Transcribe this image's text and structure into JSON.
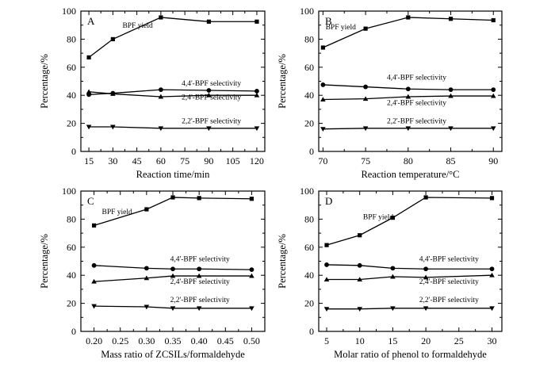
{
  "chart_data": [
    {
      "type": "line",
      "panel_label": "A",
      "xlabel": "Reaction time/min",
      "ylabel": "Percentage/%",
      "xlim": [
        10,
        125
      ],
      "ylim": [
        0,
        100
      ],
      "xticks": [
        15,
        30,
        45,
        60,
        75,
        90,
        105,
        120
      ],
      "xtick_labels": [
        "15",
        "30",
        "45",
        "60",
        "75",
        "90",
        "105",
        "120"
      ],
      "yticks": [
        0,
        20,
        40,
        60,
        80,
        100
      ],
      "ytick_labels": [
        "0",
        "20",
        "40",
        "60",
        "80",
        "100"
      ],
      "x": [
        15,
        30,
        60,
        90,
        120
      ],
      "series": [
        {
          "name": "BPF yield",
          "marker": "square",
          "values": [
            67,
            80,
            95.5,
            92.5,
            92.5
          ],
          "label_pos": [
            36,
            88
          ]
        },
        {
          "name": "4,4'-BPF selectivity",
          "marker": "circle",
          "values": [
            40.5,
            41.5,
            44,
            43.5,
            43
          ],
          "label_pos": [
            73,
            47
          ]
        },
        {
          "name": "2,4'-BPF selectivity",
          "marker": "triangle-up",
          "values": [
            42.5,
            41,
            39,
            40,
            40
          ],
          "label_pos": [
            73,
            37
          ]
        },
        {
          "name": "2,2'-BPF selectivity",
          "marker": "triangle-down",
          "values": [
            17.5,
            17.5,
            16.5,
            16.5,
            16.5
          ],
          "label_pos": [
            73,
            20
          ]
        }
      ]
    },
    {
      "type": "line",
      "panel_label": "B",
      "xlabel": "Reaction temperature/°C",
      "ylabel": "Percentage/%",
      "xlim": [
        69.5,
        91
      ],
      "ylim": [
        0,
        100
      ],
      "xticks": [
        70,
        75,
        80,
        85,
        90
      ],
      "xtick_labels": [
        "70",
        "75",
        "80",
        "85",
        "90"
      ],
      "yticks": [
        0,
        20,
        40,
        60,
        80,
        100
      ],
      "ytick_labels": [
        "0",
        "20",
        "40",
        "60",
        "80",
        "100"
      ],
      "x": [
        70,
        75,
        80,
        85,
        90
      ],
      "series": [
        {
          "name": "BPF yield",
          "marker": "square",
          "values": [
            74,
            87.5,
            95.5,
            94.5,
            93.5
          ],
          "label_pos": [
            70.3,
            87
          ]
        },
        {
          "name": "4,4'-BPF selectivity",
          "marker": "circle",
          "values": [
            47.5,
            46,
            44.5,
            44,
            44
          ],
          "label_pos": [
            77.5,
            51
          ]
        },
        {
          "name": "2,4'-BPF selectivity",
          "marker": "triangle-up",
          "values": [
            37,
            37.5,
            39,
            39.5,
            39.5
          ],
          "label_pos": [
            77.5,
            33
          ]
        },
        {
          "name": "2,2'-BPF selectivity",
          "marker": "triangle-down",
          "values": [
            16,
            16.5,
            16.5,
            16.5,
            16.5
          ],
          "label_pos": [
            77.5,
            20
          ]
        }
      ]
    },
    {
      "type": "line",
      "panel_label": "C",
      "xlabel": "Mass ratio of ZCSILs/formaldehyde",
      "ylabel": "Percentage/%",
      "xlim": [
        0.175,
        0.525
      ],
      "ylim": [
        0,
        100
      ],
      "xticks": [
        0.2,
        0.25,
        0.3,
        0.35,
        0.4,
        0.45,
        0.5
      ],
      "xtick_labels": [
        "0.20",
        "0.25",
        "0.30",
        "0.35",
        "0.40",
        "0.45",
        "0.50"
      ],
      "yticks": [
        0,
        20,
        40,
        60,
        80,
        100
      ],
      "ytick_labels": [
        "0",
        "20",
        "40",
        "60",
        "80",
        "100"
      ],
      "x": [
        0.2,
        0.3,
        0.35,
        0.4,
        0.5
      ],
      "series": [
        {
          "name": "BPF yield",
          "marker": "square",
          "values": [
            75.5,
            87,
            95.5,
            95,
            94.5
          ],
          "label_pos": [
            0.215,
            83.5
          ]
        },
        {
          "name": "4,4'-BPF selectivity",
          "marker": "circle",
          "values": [
            47,
            45,
            44.5,
            44.5,
            44
          ],
          "label_pos": [
            0.345,
            50
          ]
        },
        {
          "name": "2,4'-BPF selectivity",
          "marker": "triangle-up",
          "values": [
            35.5,
            38,
            39.5,
            39.5,
            39.5
          ],
          "label_pos": [
            0.345,
            34
          ]
        },
        {
          "name": "2,2'-BPF selectivity",
          "marker": "triangle-down",
          "values": [
            18,
            17.5,
            16.5,
            16.5,
            16.5
          ],
          "label_pos": [
            0.345,
            21
          ]
        }
      ]
    },
    {
      "type": "line",
      "panel_label": "D",
      "xlabel": "Molar ratio of phenol to formaldehyde",
      "ylabel": "Percentage/%",
      "xlim": [
        3.8,
        31.5
      ],
      "ylim": [
        0,
        100
      ],
      "xticks": [
        5,
        10,
        15,
        20,
        25,
        30
      ],
      "xtick_labels": [
        "5",
        "10",
        "15",
        "20",
        "25",
        "30"
      ],
      "yticks": [
        0,
        20,
        40,
        60,
        80,
        100
      ],
      "ytick_labels": [
        "0",
        "20",
        "40",
        "60",
        "80",
        "100"
      ],
      "x": [
        5,
        10,
        15,
        20,
        30
      ],
      "series": [
        {
          "name": "BPF yield",
          "marker": "square",
          "values": [
            61.5,
            68.5,
            81,
            95.5,
            95
          ],
          "label_pos": [
            10.5,
            80
          ]
        },
        {
          "name": "4,4'-BPF selectivity",
          "marker": "circle",
          "values": [
            47.5,
            47,
            45,
            44.5,
            44.5
          ],
          "label_pos": [
            19,
            50
          ]
        },
        {
          "name": "2,4'-BPF selectivity",
          "marker": "triangle-up",
          "values": [
            37,
            37,
            39,
            38.5,
            40
          ],
          "label_pos": [
            19,
            34
          ]
        },
        {
          "name": "2,2'-BPF selectivity",
          "marker": "triangle-down",
          "values": [
            16,
            16,
            16.5,
            16.5,
            16.5
          ],
          "label_pos": [
            19,
            21
          ]
        }
      ]
    }
  ]
}
